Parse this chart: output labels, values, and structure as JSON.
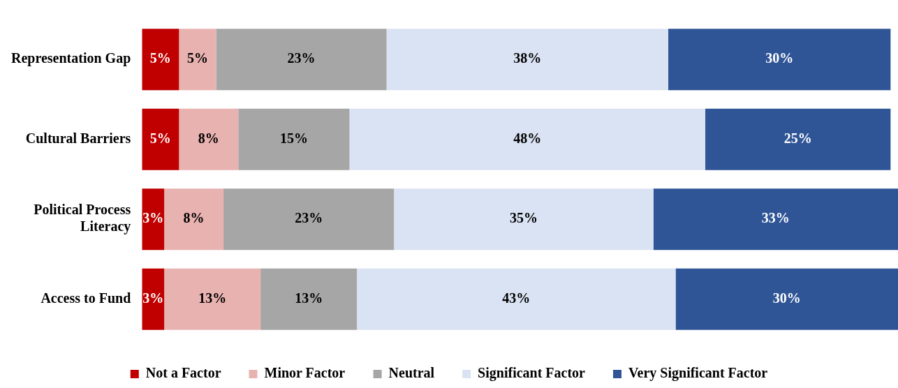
{
  "chart_data": {
    "type": "bar",
    "orientation": "horizontal",
    "stacked": true,
    "legend": "bottom",
    "tick_labels": "y",
    "categories": [
      "Representation Gap",
      "Cultural Barriers",
      "Political Process Literacy",
      "Access to Fund"
    ],
    "series": [
      {
        "name": "Not a Factor",
        "color": "#c00000",
        "values": [
          5,
          5,
          3,
          3
        ],
        "value_labels": [
          "5%",
          "5%",
          "3%",
          "3%"
        ]
      },
      {
        "name": "Minor Factor",
        "color": "#e8b2b0",
        "values": [
          5,
          8,
          8,
          13
        ],
        "value_labels": [
          "5%",
          "8%",
          "8%",
          "13%"
        ]
      },
      {
        "name": "Neutral",
        "color": "#a6a6a6",
        "values": [
          23,
          15,
          23,
          13
        ],
        "value_labels": [
          "23%",
          "15%",
          "23%",
          "13%"
        ]
      },
      {
        "name": "Significant Factor",
        "color": "#dae3f3",
        "values": [
          38,
          48,
          35,
          43
        ],
        "value_labels": [
          "38%",
          "48%",
          "35%",
          "43%"
        ]
      },
      {
        "name": "Very Significant Factor",
        "color": "#2f5597",
        "values": [
          30,
          25,
          33,
          30
        ],
        "value_labels": [
          "30%",
          "25%",
          "33%",
          "30%"
        ]
      }
    ]
  }
}
